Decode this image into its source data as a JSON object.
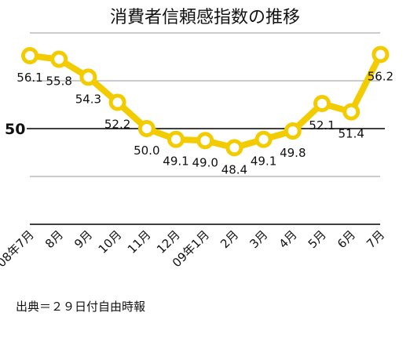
{
  "chart_data": {
    "type": "line",
    "title": "消費者信頼感指数の推移",
    "categories": [
      "08年7月",
      "8月",
      "9月",
      "10月",
      "11月",
      "12月",
      "09年1月",
      "2月",
      "3月",
      "4月",
      "5月",
      "6月",
      "7月"
    ],
    "series": [
      {
        "values": [
          56.1,
          55.8,
          54.3,
          52.2,
          50.0,
          49.1,
          49.0,
          48.4,
          49.1,
          49.8,
          52.1,
          51.4,
          56.2
        ]
      }
    ],
    "data_labels": [
      "56.1",
      "55.8",
      "54.3",
      "52.2",
      "50.0",
      "49.1",
      "49.0",
      "48.4",
      "49.1",
      "49.8",
      "52.1",
      "51.4",
      "56.2"
    ],
    "ytick_labels": [
      "50"
    ],
    "reference_value": 50,
    "gridlines": [
      58,
      54,
      46,
      42
    ],
    "ylim": [
      42,
      58
    ],
    "grid": true,
    "legend": "none",
    "colors": {
      "line": "#f2cc00",
      "marker_fill": "#ffffff",
      "reference_line": "#000000",
      "grid": "#999999"
    }
  },
  "source_note": "出典＝２９日付自由時報"
}
